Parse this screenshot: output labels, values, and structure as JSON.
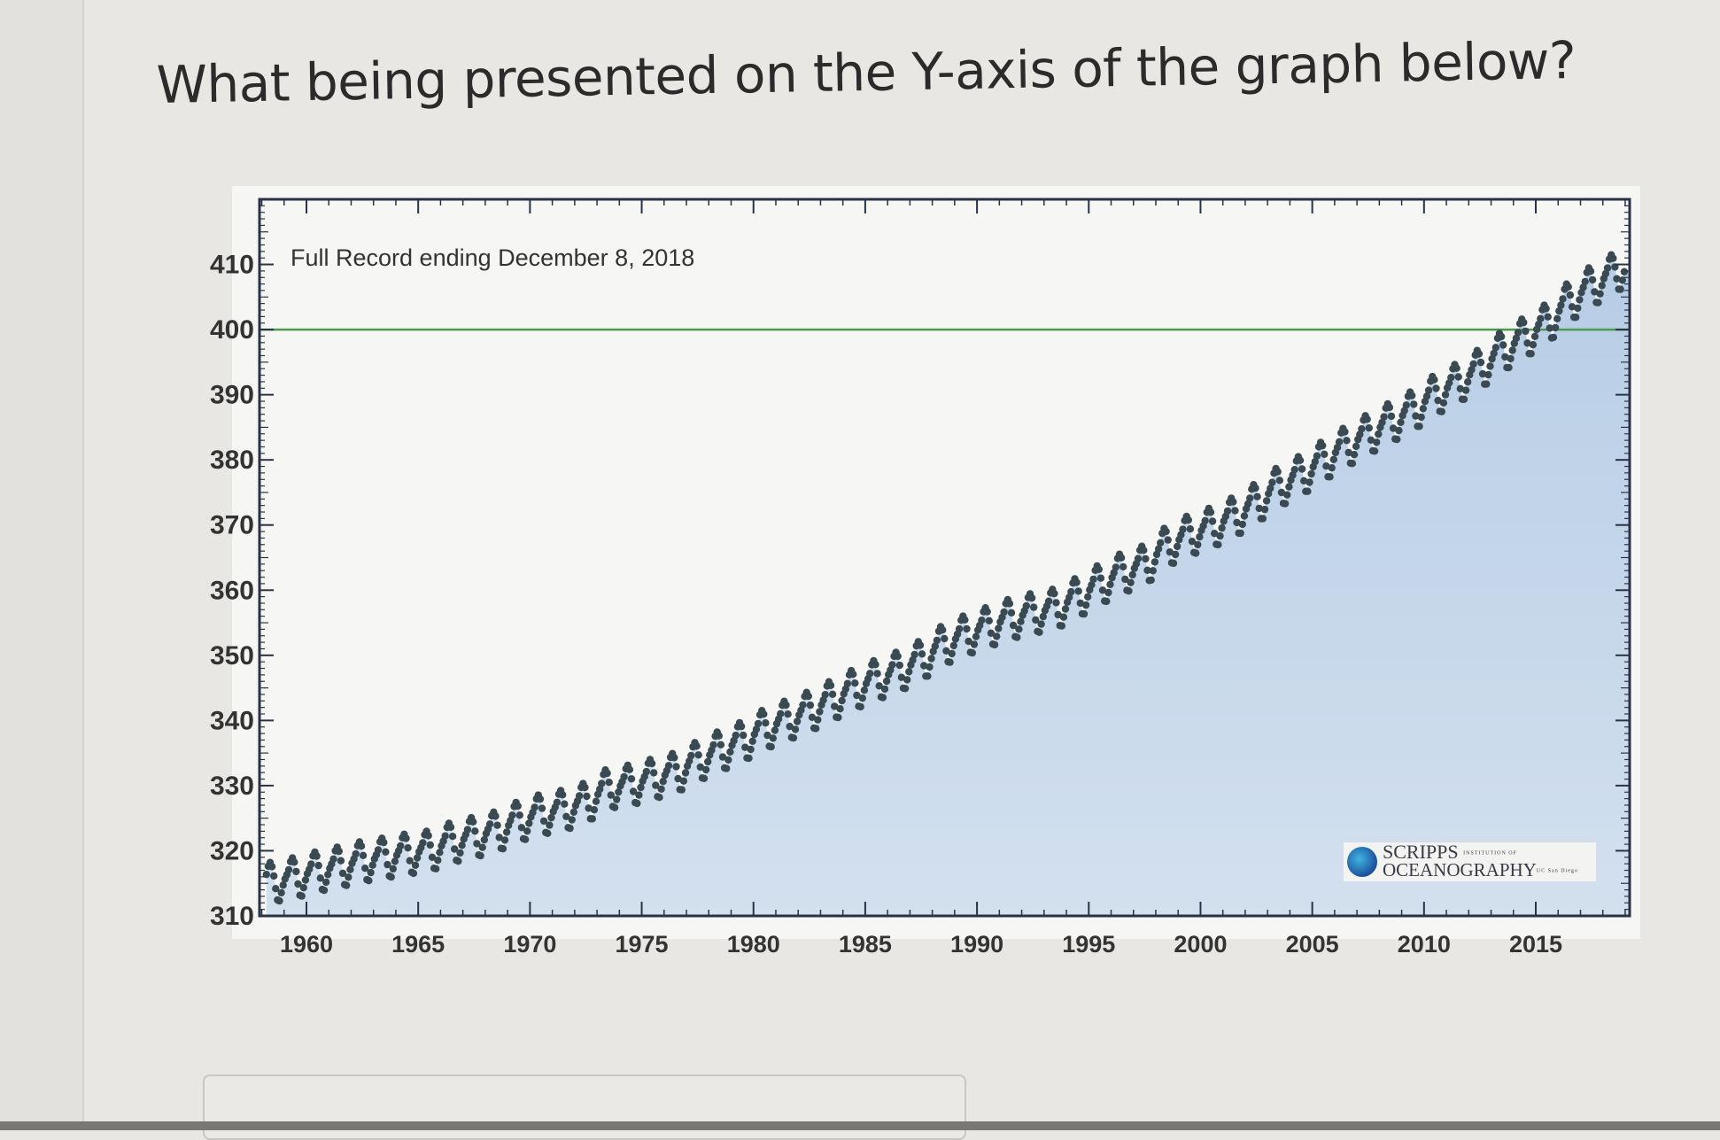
{
  "question": {
    "text": "What being presented on the Y-axis of the graph below?"
  },
  "answer_box": {
    "value": ""
  },
  "logo": {
    "line1": "SCRIPPS",
    "line1_small": "INSTITUTION OF",
    "line2": "OCEANOGRAPHY",
    "line2_small": "UC San Diego"
  },
  "chart_data": {
    "type": "scatter",
    "title": "Full Record ending December 8, 2018",
    "xlabel": "",
    "ylabel": "",
    "xlim": [
      1957.9,
      2019.2
    ],
    "ylim": [
      310,
      420
    ],
    "x_ticks": [
      1960,
      1965,
      1970,
      1975,
      1980,
      1985,
      1990,
      1995,
      2000,
      2005,
      2010,
      2015
    ],
    "y_ticks": [
      310,
      320,
      330,
      340,
      350,
      360,
      370,
      380,
      390,
      400,
      410
    ],
    "reference_line": {
      "y": 400,
      "color": "#4a9a4a"
    },
    "fill_under_curve": true,
    "fill_color": "#c3d6ea",
    "marker_color": "#3a4a52",
    "grid": false,
    "years": [
      1958,
      1959,
      1960,
      1961,
      1962,
      1963,
      1964,
      1965,
      1966,
      1967,
      1968,
      1969,
      1970,
      1971,
      1972,
      1973,
      1974,
      1975,
      1976,
      1977,
      1978,
      1979,
      1980,
      1981,
      1982,
      1983,
      1984,
      1985,
      1986,
      1987,
      1988,
      1989,
      1990,
      1991,
      1992,
      1993,
      1994,
      1995,
      1996,
      1997,
      1998,
      1999,
      2000,
      2001,
      2002,
      2003,
      2004,
      2005,
      2006,
      2007,
      2008,
      2009,
      2010,
      2011,
      2012,
      2013,
      2014,
      2015,
      2016,
      2017,
      2018
    ],
    "annual_mean": [
      315.3,
      315.98,
      316.91,
      317.64,
      318.45,
      318.99,
      319.62,
      320.04,
      321.37,
      322.18,
      323.05,
      324.62,
      325.68,
      326.32,
      327.46,
      329.68,
      330.19,
      331.13,
      332.03,
      333.84,
      335.41,
      336.84,
      338.76,
      340.12,
      341.48,
      343.15,
      344.87,
      346.35,
      347.61,
      349.31,
      351.69,
      353.2,
      354.45,
      355.7,
      356.54,
      357.21,
      358.96,
      360.97,
      362.74,
      363.88,
      366.84,
      368.54,
      369.71,
      371.32,
      373.45,
      375.98,
      377.7,
      379.98,
      382.09,
      384.02,
      385.83,
      387.64,
      390.1,
      391.85,
      394.06,
      396.74,
      398.87,
      401.01,
      404.41,
      406.76,
      408.72
    ],
    "seasonal_cycle_by_month": [
      0.0,
      0.6,
      1.3,
      2.5,
      3.0,
      2.3,
      0.8,
      -1.2,
      -3.0,
      -3.2,
      -2.0,
      -0.9
    ],
    "record_start": "1958-03",
    "record_end": "2018-12"
  }
}
